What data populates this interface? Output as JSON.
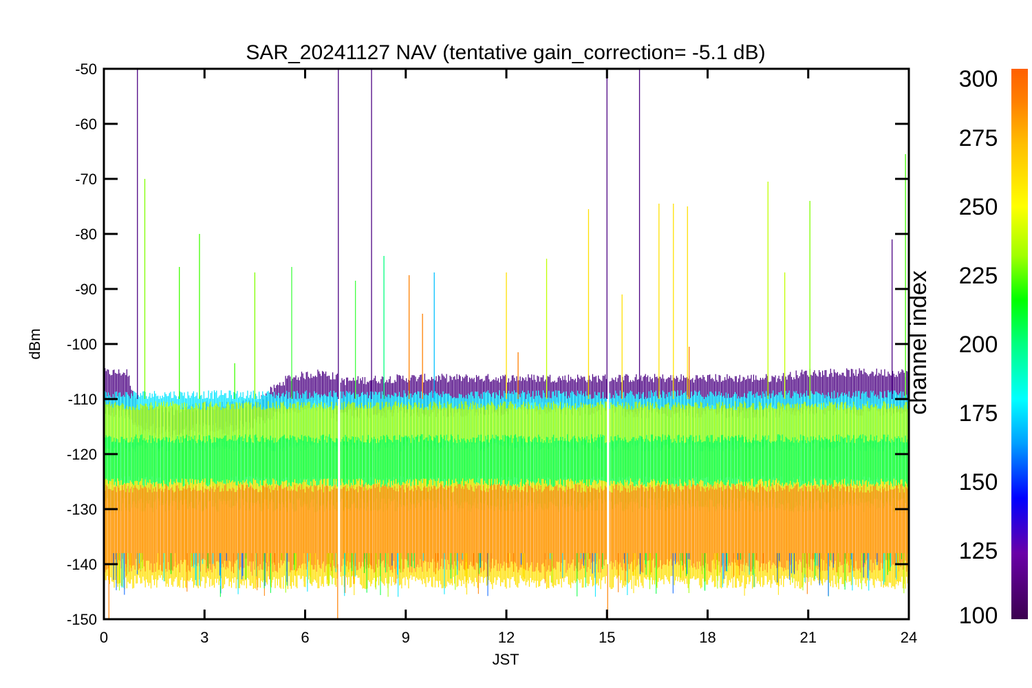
{
  "chart_data": {
    "type": "line",
    "title": "SAR_20241127 NAV (tentative gain_correction= -5.1 dB)",
    "xlabel": "JST",
    "ylabel": "dBm",
    "xlim": [
      0,
      24
    ],
    "ylim": [
      -150,
      -50
    ],
    "x_ticks": [
      0,
      3,
      6,
      9,
      12,
      15,
      18,
      21,
      24
    ],
    "y_ticks": [
      -50,
      -60,
      -70,
      -80,
      -90,
      -100,
      -110,
      -120,
      -130,
      -140,
      -150
    ],
    "grid": false,
    "data_gaps_hours": [
      7.0,
      15.05
    ],
    "colorbar": {
      "title": "channel index",
      "range": [
        100,
        300
      ],
      "ticks": [
        300,
        275,
        250,
        225,
        200,
        175,
        150,
        125,
        100
      ],
      "colormap": [
        "#3c0050",
        "#6a00a8",
        "#0000ff",
        "#00a0ff",
        "#00ffff",
        "#00ff80",
        "#00ff00",
        "#a0ff00",
        "#ffff00",
        "#ffc000",
        "#ff8000",
        "#ff6000"
      ]
    },
    "series": [
      {
        "channel_band": "100-115",
        "color": "#4b0082",
        "x": [
          0,
          0.7,
          1.0,
          2.0,
          3.0,
          4.0,
          4.6,
          5.5,
          6.5,
          7.0,
          7.2,
          9,
          12,
          15,
          16,
          18,
          20,
          21,
          22,
          23,
          24
        ],
        "y_min": [
          -111,
          -111,
          -114,
          -115,
          -114,
          -114,
          -113,
          -110,
          -110,
          -112,
          -111,
          -111,
          -110.5,
          -110.5,
          -111,
          -111,
          -111,
          -110.5,
          -110.5,
          -110.5,
          -110.5
        ],
        "y_max": [
          -106,
          -106,
          -112,
          -113,
          -112,
          -112,
          -111,
          -107,
          -106,
          -107,
          -107.5,
          -107,
          -107,
          -107,
          -107,
          -107,
          -107,
          -106,
          -106,
          -106,
          -106
        ]
      },
      {
        "channel_band": "150-200",
        "color": "#00e5ff",
        "x": [
          0,
          24
        ],
        "y_min": [
          -117,
          -117
        ],
        "y_max": [
          -110,
          -110
        ]
      },
      {
        "channel_band": "225-260",
        "color": "#a0ff00",
        "x": [
          0,
          24
        ],
        "y_min": [
          -124,
          -124
        ],
        "y_max": [
          -112,
          -112
        ]
      },
      {
        "channel_band": "200-225",
        "color": "#00ff40",
        "x": [
          0,
          24
        ],
        "y_min": [
          -128,
          -128
        ],
        "y_max": [
          -118,
          -118
        ]
      },
      {
        "channel_band": "260-280",
        "color": "#ffe000",
        "x": [
          0,
          24
        ],
        "y_min": [
          -142,
          -142
        ],
        "y_max": [
          -126,
          -126
        ]
      },
      {
        "channel_band": "280-300",
        "color": "#ff8c00",
        "x": [
          0,
          24
        ],
        "y_min": [
          -139,
          -139
        ],
        "y_max": [
          -127,
          -127
        ]
      }
    ],
    "spikes": [
      {
        "x": 1.0,
        "top": -50,
        "color": "#4b0082"
      },
      {
        "x": 1.22,
        "top": -70,
        "color": "#80ff00"
      },
      {
        "x": 2.25,
        "top": -86,
        "color": "#40ff00"
      },
      {
        "x": 2.85,
        "top": -80,
        "color": "#40ff00"
      },
      {
        "x": 3.9,
        "top": -103.5,
        "color": "#40ff00"
      },
      {
        "x": 4.5,
        "top": -87,
        "color": "#80ff00"
      },
      {
        "x": 5.6,
        "top": -86,
        "color": "#40ff40"
      },
      {
        "x": 6.99,
        "top": -50,
        "color": "#4b0082"
      },
      {
        "x": 7.5,
        "top": -88.5,
        "color": "#40ff40"
      },
      {
        "x": 7.98,
        "top": -50,
        "color": "#4b0082"
      },
      {
        "x": 8.35,
        "top": -84,
        "color": "#00ff80"
      },
      {
        "x": 9.1,
        "top": -87.5,
        "color": "#ff8000"
      },
      {
        "x": 9.5,
        "top": -94.5,
        "color": "#ff8000"
      },
      {
        "x": 9.85,
        "top": -87,
        "color": "#00c0ff"
      },
      {
        "x": 12.0,
        "top": -87,
        "color": "#ffe000"
      },
      {
        "x": 12.35,
        "top": -101.5,
        "color": "#ff8000"
      },
      {
        "x": 13.2,
        "top": -84.5,
        "color": "#c0ff00"
      },
      {
        "x": 14.45,
        "top": -75.5,
        "color": "#ffe000"
      },
      {
        "x": 15.0,
        "top": -50,
        "color": "#4b0082"
      },
      {
        "x": 15.45,
        "top": -91,
        "color": "#ffe000"
      },
      {
        "x": 15.97,
        "top": -50,
        "color": "#4b0082"
      },
      {
        "x": 16.55,
        "top": -74.5,
        "color": "#ffe000"
      },
      {
        "x": 16.98,
        "top": -74.5,
        "color": "#ffe000"
      },
      {
        "x": 17.4,
        "top": -75,
        "color": "#ffe000"
      },
      {
        "x": 17.45,
        "top": -100.5,
        "color": "#ff8000"
      },
      {
        "x": 19.8,
        "top": -70.5,
        "color": "#c0ff00"
      },
      {
        "x": 20.3,
        "top": -87,
        "color": "#c0ff00"
      },
      {
        "x": 21.05,
        "top": -74,
        "color": "#80ff00"
      },
      {
        "x": 23.5,
        "top": -81,
        "color": "#4b0082"
      },
      {
        "x": 23.9,
        "top": -65.5,
        "color": "#40ff00"
      }
    ]
  }
}
